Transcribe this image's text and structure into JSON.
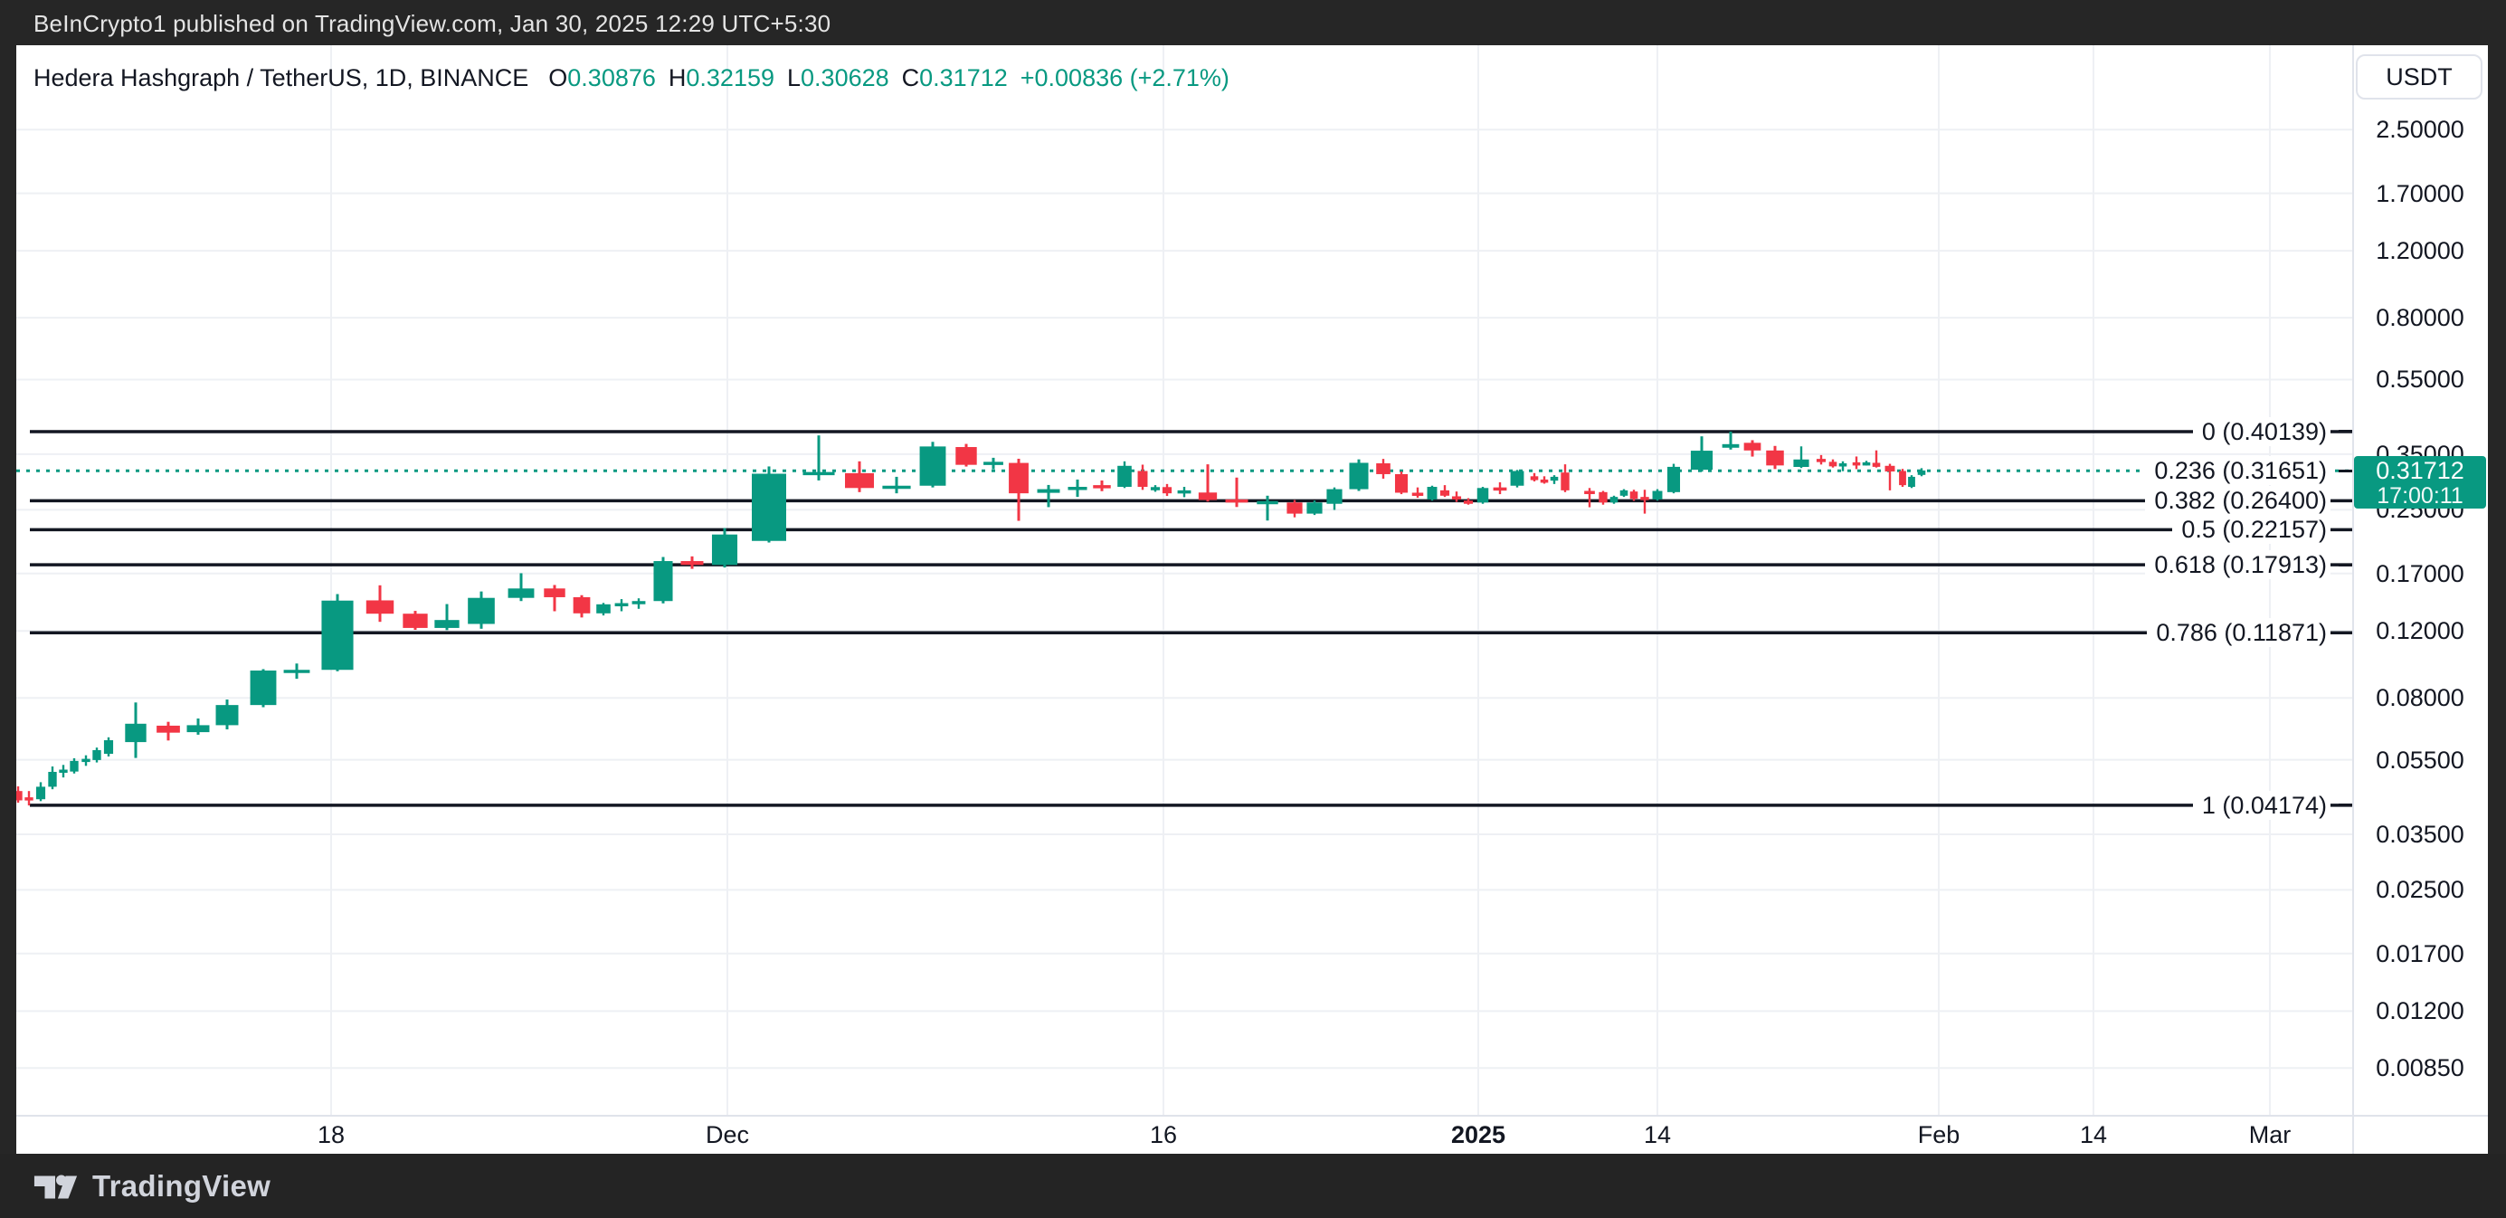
{
  "top_bar": {
    "text": "BeInCrypto1 published on TradingView.com, Jan 30, 2025 12:29 UTC+5:30"
  },
  "legend": {
    "symbol_title": "Hedera Hashgraph / TetherUS, 1D, BINANCE",
    "ohlc": [
      {
        "k": "O",
        "v": "0.30876"
      },
      {
        "k": "H",
        "v": "0.32159"
      },
      {
        "k": "L",
        "v": "0.30628"
      },
      {
        "k": "C",
        "v": "0.31712"
      }
    ],
    "change": "+0.00836 (+2.71%)"
  },
  "axis": {
    "currency_button": "USDT"
  },
  "price_line": {
    "label": "0.31712",
    "countdown": "17:00:11",
    "value": 0.31712
  },
  "footer": {
    "brand": "TradingView"
  },
  "colors": {
    "up": "#089981",
    "down": "#f23645",
    "grid": "#eef0f4",
    "fib_line": "#131722",
    "text_dark": "#131722",
    "badge": "#089981"
  },
  "chart_data": {
    "type": "candlestick",
    "title": "Hedera Hashgraph / TetherUS, 1D, BINANCE",
    "scale": "log",
    "x_unit": "px",
    "ylim": [
      0.0085,
      2.5
    ],
    "grid": true,
    "price_axis_ticks": [
      {
        "label": "2.50000",
        "value": 2.5
      },
      {
        "label": "1.70000",
        "value": 1.7
      },
      {
        "label": "1.20000",
        "value": 1.2
      },
      {
        "label": "0.80000",
        "value": 0.8
      },
      {
        "label": "0.55000",
        "value": 0.55
      },
      {
        "label": "0.35000",
        "value": 0.35
      },
      {
        "label": "0.25000",
        "value": 0.25
      },
      {
        "label": "0.17000",
        "value": 0.17
      },
      {
        "label": "0.12000",
        "value": 0.12
      },
      {
        "label": "0.08000",
        "value": 0.08
      },
      {
        "label": "0.05500",
        "value": 0.055
      },
      {
        "label": "0.03500",
        "value": 0.035
      },
      {
        "label": "0.02500",
        "value": 0.025
      },
      {
        "label": "0.01700",
        "value": 0.017
      },
      {
        "label": "0.01200",
        "value": 0.012
      },
      {
        "label": "0.00850",
        "value": 0.0085
      }
    ],
    "time_axis_ticks": [
      {
        "label": "18",
        "x": 366,
        "bold": false
      },
      {
        "label": "Dec",
        "x": 804,
        "bold": false
      },
      {
        "label": "16",
        "x": 1286,
        "bold": false
      },
      {
        "label": "2025",
        "x": 1634,
        "bold": true
      },
      {
        "label": "14",
        "x": 1832,
        "bold": false
      },
      {
        "label": "Feb",
        "x": 2143,
        "bold": false
      },
      {
        "label": "14",
        "x": 2314,
        "bold": false
      },
      {
        "label": "Mar",
        "x": 2509,
        "bold": false
      }
    ],
    "fib_levels": [
      {
        "level": "0",
        "price": 0.40139,
        "display": "0 (0.40139)",
        "style": "solid"
      },
      {
        "level": "0.236",
        "price": 0.31651,
        "display": "0.236 (0.31651)",
        "style": "dotted"
      },
      {
        "level": "0.382",
        "price": 0.264,
        "display": "0.382 (0.26400)",
        "style": "solid"
      },
      {
        "level": "0.5",
        "price": 0.22157,
        "display": "0.5 (0.22157)",
        "style": "solid"
      },
      {
        "level": "0.618",
        "price": 0.17913,
        "display": "0.618 (0.17913)",
        "style": "solid"
      },
      {
        "level": "0.786",
        "price": 0.11871,
        "display": "0.786 (0.11871)",
        "style": "solid"
      },
      {
        "level": "1",
        "price": 0.04174,
        "display": "1 (0.04174)",
        "style": "solid"
      }
    ],
    "last_candle_ohlc": {
      "o": 0.30876,
      "h": 0.32159,
      "l": 0.30628,
      "c": 0.31712
    },
    "candles": [
      [
        20,
        0.0455,
        0.0468,
        0.0424,
        0.043
      ],
      [
        32,
        0.0438,
        0.0455,
        0.0417,
        0.0433
      ],
      [
        45,
        0.0433,
        0.048,
        0.0428,
        0.0467
      ],
      [
        58,
        0.0467,
        0.0528,
        0.046,
        0.0511
      ],
      [
        70,
        0.0513,
        0.0533,
        0.0494,
        0.0518
      ],
      [
        82,
        0.0512,
        0.0555,
        0.0506,
        0.0546
      ],
      [
        95,
        0.0548,
        0.0565,
        0.053,
        0.0553
      ],
      [
        107,
        0.0549,
        0.0592,
        0.0541,
        0.0583
      ],
      [
        120,
        0.057,
        0.063,
        0.0561,
        0.0619
      ],
      [
        150,
        0.0612,
        0.0778,
        0.0556,
        0.0684
      ],
      [
        186,
        0.0676,
        0.0692,
        0.0618,
        0.0648
      ],
      [
        219,
        0.065,
        0.0706,
        0.064,
        0.0678
      ],
      [
        251,
        0.0678,
        0.0792,
        0.0661,
        0.0766
      ],
      [
        291,
        0.0766,
        0.0952,
        0.0756,
        0.0944
      ],
      [
        328,
        0.0941,
        0.0985,
        0.0898,
        0.0948
      ],
      [
        373,
        0.0948,
        0.15,
        0.094,
        0.1442
      ],
      [
        420,
        0.1444,
        0.1582,
        0.1268,
        0.1332
      ],
      [
        459,
        0.1332,
        0.1355,
        0.1208,
        0.1222
      ],
      [
        494,
        0.1222,
        0.1412,
        0.1206,
        0.1282
      ],
      [
        532,
        0.1252,
        0.1524,
        0.1216,
        0.1466
      ],
      [
        576,
        0.1466,
        0.1702,
        0.1438,
        0.1552
      ],
      [
        613,
        0.1552,
        0.1585,
        0.1352,
        0.1472
      ],
      [
        643,
        0.1472,
        0.149,
        0.1302,
        0.1335
      ],
      [
        667,
        0.1335,
        0.1422,
        0.1318,
        0.141
      ],
      [
        687,
        0.1412,
        0.1455,
        0.1352,
        0.142
      ],
      [
        706,
        0.142,
        0.1462,
        0.1372,
        0.1438
      ],
      [
        733,
        0.1438,
        0.1878,
        0.1418,
        0.1832
      ],
      [
        765,
        0.1832,
        0.1885,
        0.1748,
        0.179
      ],
      [
        801,
        0.179,
        0.2238,
        0.1762,
        0.2152
      ],
      [
        850,
        0.207,
        0.325,
        0.205,
        0.311
      ],
      [
        905,
        0.313,
        0.3922,
        0.2986,
        0.3142
      ],
      [
        950,
        0.312,
        0.3352,
        0.2782,
        0.2852
      ],
      [
        991,
        0.288,
        0.3052,
        0.2762,
        0.2892
      ],
      [
        1031,
        0.2892,
        0.3772,
        0.2862,
        0.3668
      ],
      [
        1068,
        0.3655,
        0.3725,
        0.3248,
        0.3282
      ],
      [
        1098,
        0.33,
        0.3425,
        0.3198,
        0.3342
      ],
      [
        1126,
        0.332,
        0.3405,
        0.2338,
        0.2762
      ],
      [
        1159,
        0.277,
        0.2905,
        0.254,
        0.2832
      ],
      [
        1191,
        0.2838,
        0.3002,
        0.2702,
        0.2872
      ],
      [
        1218,
        0.2902,
        0.2985,
        0.2798,
        0.2878
      ],
      [
        1243,
        0.2872,
        0.3352,
        0.2852,
        0.3262
      ],
      [
        1263,
        0.3162,
        0.3285,
        0.282,
        0.2872
      ],
      [
        1277,
        0.2845,
        0.2902,
        0.2788,
        0.2868
      ],
      [
        1290,
        0.2868,
        0.2922,
        0.2718,
        0.2762
      ],
      [
        1309,
        0.2772,
        0.2872,
        0.2698,
        0.2812
      ],
      [
        1335,
        0.2775,
        0.3292,
        0.2628,
        0.2652
      ],
      [
        1367,
        0.2662,
        0.3038,
        0.2542,
        0.2612
      ],
      [
        1401,
        0.2622,
        0.2722,
        0.2342,
        0.2635
      ],
      [
        1431,
        0.2612,
        0.2652,
        0.2388,
        0.2442
      ],
      [
        1453,
        0.2442,
        0.2645,
        0.2422,
        0.2612
      ],
      [
        1475,
        0.2592,
        0.2862,
        0.2498,
        0.2832
      ],
      [
        1502,
        0.2832,
        0.3392,
        0.2802,
        0.3322
      ],
      [
        1529,
        0.3312,
        0.3402,
        0.3018,
        0.3102
      ],
      [
        1549,
        0.3102,
        0.3152,
        0.2748,
        0.2772
      ],
      [
        1567,
        0.2772,
        0.2862,
        0.2688,
        0.2722
      ],
      [
        1583,
        0.2662,
        0.2892,
        0.2642,
        0.2872
      ],
      [
        1597,
        0.2812,
        0.2902,
        0.2702,
        0.2722
      ],
      [
        1610,
        0.2712,
        0.2792,
        0.2622,
        0.2702
      ],
      [
        1623,
        0.2642,
        0.2682,
        0.2578,
        0.2612
      ],
      [
        1639,
        0.2612,
        0.2872,
        0.2592,
        0.2852
      ],
      [
        1658,
        0.2862,
        0.2952,
        0.2748,
        0.2842
      ],
      [
        1677,
        0.2892,
        0.3182,
        0.2862,
        0.3162
      ],
      [
        1696,
        0.3062,
        0.3122,
        0.2968,
        0.2992
      ],
      [
        1707,
        0.3002,
        0.3062,
        0.2928,
        0.2972
      ],
      [
        1718,
        0.2982,
        0.3082,
        0.2922,
        0.3052
      ],
      [
        1730,
        0.3132,
        0.3292,
        0.2782,
        0.2812
      ],
      [
        1757,
        0.2802,
        0.2852,
        0.2538,
        0.2762
      ],
      [
        1772,
        0.2782,
        0.2802,
        0.2578,
        0.2612
      ],
      [
        1784,
        0.2612,
        0.2722,
        0.2592,
        0.2702
      ],
      [
        1795,
        0.2722,
        0.2832,
        0.2702,
        0.2812
      ],
      [
        1806,
        0.2792,
        0.2822,
        0.2638,
        0.2672
      ],
      [
        1818,
        0.2702,
        0.2822,
        0.2442,
        0.2682
      ],
      [
        1832,
        0.2662,
        0.2832,
        0.2642,
        0.2802
      ],
      [
        1850,
        0.2782,
        0.3302,
        0.2762,
        0.3242
      ],
      [
        1881,
        0.3185,
        0.39,
        0.315,
        0.3575
      ],
      [
        1913,
        0.364,
        0.4014,
        0.36,
        0.372
      ],
      [
        1937,
        0.375,
        0.381,
        0.345,
        0.358
      ],
      [
        1962,
        0.358,
        0.368,
        0.32,
        0.327
      ],
      [
        1991,
        0.324,
        0.367,
        0.322,
        0.339
      ],
      [
        2013,
        0.3402,
        0.3482,
        0.3288,
        0.3352
      ],
      [
        2026,
        0.3342,
        0.3392,
        0.3228,
        0.3252
      ],
      [
        2037,
        0.3272,
        0.3352,
        0.3158,
        0.3312
      ],
      [
        2052,
        0.3332,
        0.3452,
        0.3198,
        0.3292
      ],
      [
        2063,
        0.3312,
        0.3362,
        0.3268,
        0.3332
      ],
      [
        2074,
        0.3322,
        0.3582,
        0.3228,
        0.3242
      ],
      [
        2089,
        0.3262,
        0.3302,
        0.2812,
        0.3152
      ],
      [
        2103,
        0.3162,
        0.3202,
        0.2872,
        0.2902
      ],
      [
        2113,
        0.2872,
        0.3082,
        0.2852,
        0.3052
      ],
      [
        2124,
        0.30876,
        0.32159,
        0.30628,
        0.31712
      ]
    ]
  }
}
